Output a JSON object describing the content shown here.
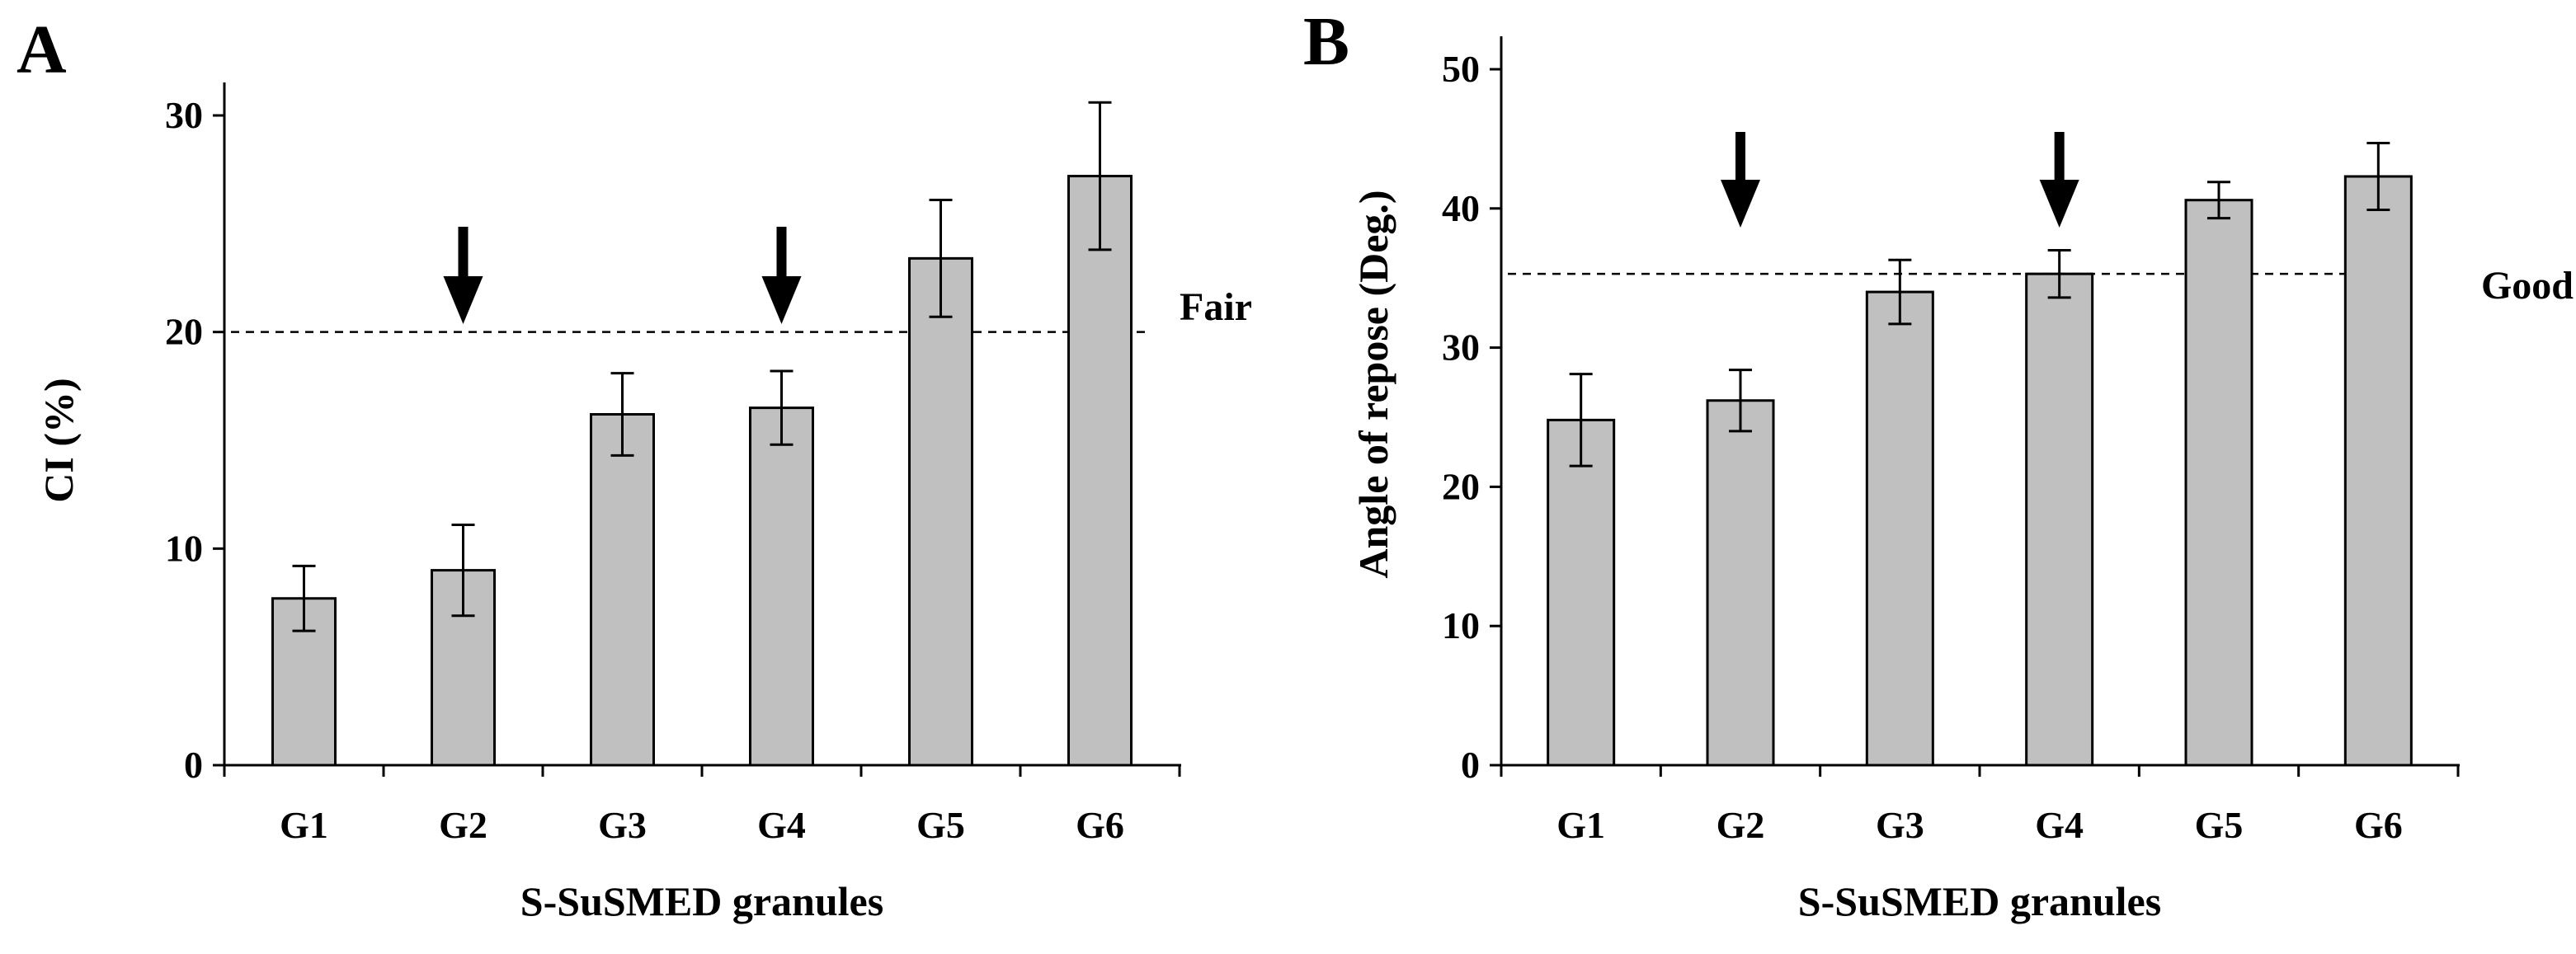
{
  "chart_data": [
    {
      "panel": "A",
      "type": "bar",
      "categories": [
        "G1",
        "G2",
        "G3",
        "G4",
        "G5",
        "G6"
      ],
      "values": [
        7.7,
        9.0,
        16.2,
        16.5,
        23.4,
        27.2
      ],
      "errors": [
        1.5,
        2.1,
        1.9,
        1.7,
        2.7,
        3.4
      ],
      "xlabel": "S-SuSMED granules",
      "ylabel": "CI (%)",
      "ylim": [
        0,
        30
      ],
      "yticks": [
        0,
        10,
        20,
        30
      ],
      "reference_line": {
        "value": 20,
        "label": "Fair"
      },
      "arrows_over": [
        "G2",
        "G4"
      ]
    },
    {
      "panel": "B",
      "type": "bar",
      "categories": [
        "G1",
        "G2",
        "G3",
        "G4",
        "G5",
        "G6"
      ],
      "values": [
        24.8,
        26.2,
        34.0,
        35.3,
        40.6,
        42.3
      ],
      "errors": [
        3.3,
        2.2,
        2.3,
        1.7,
        1.3,
        2.4
      ],
      "xlabel": "S-SuSMED granules",
      "ylabel": "Angle of repose (Deg.)",
      "ylim": [
        0,
        50
      ],
      "yticks": [
        0,
        10,
        20,
        30,
        40,
        50
      ],
      "reference_line": {
        "value": 35.3,
        "label": "Good"
      },
      "arrows_over": [
        "G2",
        "G4"
      ]
    }
  ]
}
